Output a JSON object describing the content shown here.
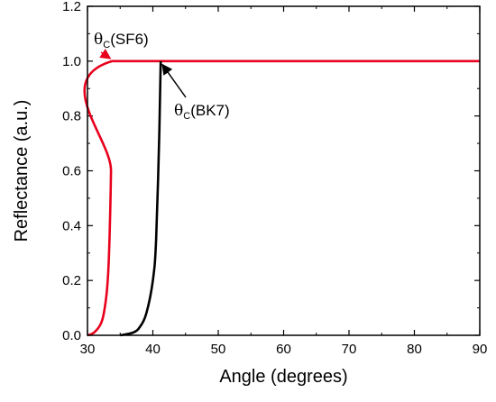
{
  "chart_data": {
    "type": "line",
    "xlabel": "Angle (degrees)",
    "ylabel": "Reflectance (a.u.)",
    "xlim": [
      30,
      90
    ],
    "ylim": [
      0,
      1.2
    ],
    "xticks": [
      "30",
      "40",
      "50",
      "60",
      "70",
      "80",
      "90"
    ],
    "yticks": [
      "0.0",
      "0.2",
      "0.4",
      "0.6",
      "0.8",
      "1.0",
      "1.2"
    ],
    "grid": false,
    "series": [
      {
        "color": "#e8001c",
        "x": [
          30,
          31,
          32,
          32.5,
          33,
          33.3,
          33.6,
          33.75,
          90
        ],
        "y": [
          0.0,
          0.01,
          0.04,
          0.08,
          0.17,
          0.3,
          0.6,
          1.0,
          1.0
        ]
      },
      {
        "color": "#000000",
        "x": [
          35,
          37,
          38,
          39,
          40,
          40.5,
          41.0,
          41.2
        ],
        "y": [
          0.0,
          0.01,
          0.03,
          0.08,
          0.2,
          0.35,
          0.75,
          1.0
        ]
      }
    ],
    "annotations": [
      {
        "label_main": "θ",
        "label_sub": "C",
        "label_tail": "(SF6)",
        "x": 33.75,
        "y": 1.0
      },
      {
        "label_main": "θ",
        "label_sub": "C",
        "label_tail": "(BK7)",
        "x": 41.2,
        "y": 1.0
      }
    ]
  }
}
